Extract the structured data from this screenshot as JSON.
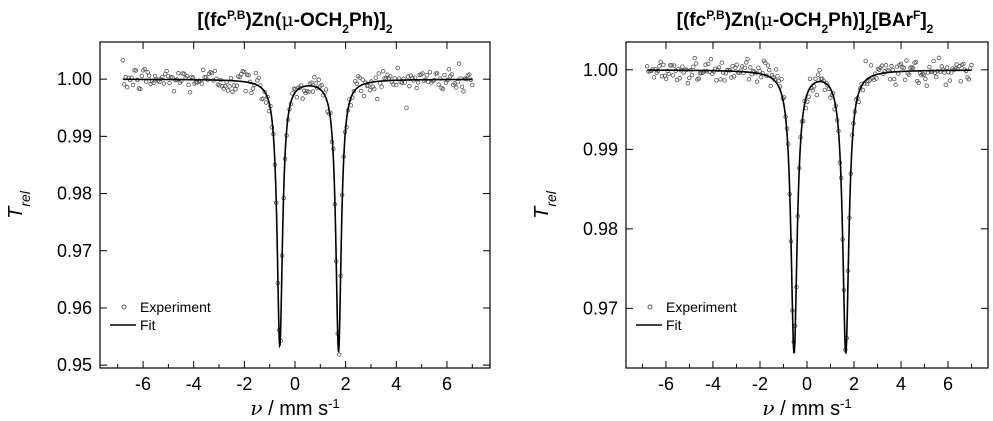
{
  "chart_data": [
    {
      "type": "scatter",
      "title_parts": [
        "[(fc",
        "P,B",
        ")Zn(",
        "μ",
        "-OCH",
        "2",
        "Ph)]",
        "2"
      ],
      "title_kinds": [
        "n",
        "sup",
        "n",
        "greek",
        "n",
        "sub",
        "n",
        "sub"
      ],
      "xlabel_parts": [
        "ν",
        " / mm s",
        "-1"
      ],
      "ylabel_parts": [
        "T",
        "rel"
      ],
      "xlim": [
        -7.7,
        7.7
      ],
      "ylim": [
        0.9495,
        1.0065
      ],
      "xticks": [
        -6,
        -4,
        -2,
        0,
        2,
        4,
        6
      ],
      "yticks": [
        0.95,
        0.96,
        0.97,
        0.98,
        0.99,
        1.0
      ],
      "ytick_labels": [
        "0.95",
        "0.96",
        "0.97",
        "0.98",
        "0.99",
        "1.00"
      ],
      "legend": {
        "position": "bottom-left",
        "entries": [
          "Experiment",
          "Fit"
        ]
      },
      "fit": {
        "baseline": 1.0,
        "lines": [
          {
            "center": -0.6,
            "depth": 0.0466,
            "hwhm": 0.13
          },
          {
            "center": 1.72,
            "depth": 0.0476,
            "hwhm": 0.13
          }
        ]
      },
      "series": [
        {
          "name": "Experiment",
          "marker": "circle-open",
          "x_range": [
            -6.8,
            7.0
          ],
          "n_points": 240,
          "noise": 0.0012
        },
        {
          "name": "Fit",
          "style": "solid-line"
        }
      ]
    },
    {
      "type": "scatter",
      "title_parts": [
        "[(fc",
        "P,B",
        ")Zn(",
        "μ",
        "-OCH",
        "2",
        "Ph)]",
        "2",
        "[BAr",
        "F",
        "]",
        "2"
      ],
      "title_kinds": [
        "n",
        "sup",
        "n",
        "greek",
        "n",
        "sub",
        "n",
        "sub",
        "n",
        "sup",
        "n",
        "sub"
      ],
      "xlabel_parts": [
        "ν",
        " / mm s",
        "-1"
      ],
      "ylabel_parts": [
        "T",
        "rel"
      ],
      "xlim": [
        -7.7,
        7.7
      ],
      "ylim": [
        0.9625,
        1.0035
      ],
      "xticks": [
        -6,
        -4,
        -2,
        0,
        2,
        4,
        6
      ],
      "yticks": [
        0.97,
        0.98,
        0.99,
        1.0
      ],
      "ytick_labels": [
        "0.97",
        "0.98",
        "0.99",
        "1.00"
      ],
      "legend": {
        "position": "bottom-left",
        "entries": [
          "Experiment",
          "Fit"
        ]
      },
      "fit": {
        "baseline": 1.0,
        "lines": [
          {
            "center": -0.55,
            "depth": 0.0355,
            "hwhm": 0.16
          },
          {
            "center": 1.65,
            "depth": 0.0355,
            "hwhm": 0.16
          }
        ]
      },
      "series": [
        {
          "name": "Experiment",
          "marker": "circle-open",
          "x_range": [
            -6.8,
            7.0
          ],
          "n_points": 240,
          "noise": 0.0008
        },
        {
          "name": "Fit",
          "style": "solid-line"
        }
      ]
    }
  ]
}
